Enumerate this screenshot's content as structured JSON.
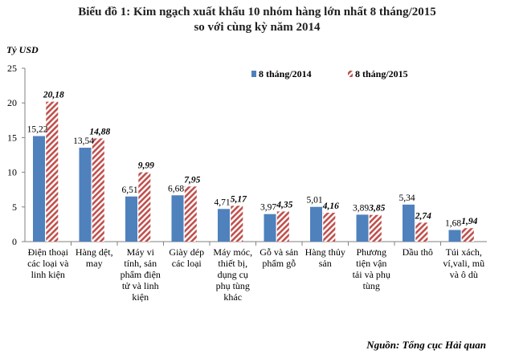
{
  "chart_data": {
    "type": "bar",
    "title_lines": [
      "Biểu đồ 1: Kim ngạch xuất khẩu 10 nhóm hàng lớn nhất 8 tháng/2015",
      "so với cùng kỳ năm 2014"
    ],
    "ylabel": "Tỷ USD",
    "ylim": [
      0,
      25
    ],
    "yticks": [
      "0",
      "5",
      "10",
      "15",
      "20",
      "25"
    ],
    "categories": [
      "Điện thoại các loại và linh kiện",
      "Hàng dệt, may",
      "Máy vi tính, sản phẩm điện tử và linh kiện",
      "Giày dép các loại",
      "Máy móc, thiết bị, dụng cụ phụ tùng khác",
      "Gỗ và sản phẩm gỗ",
      "Hàng thủy sản",
      "Phương tiện vận tải và phụ tùng",
      "Dầu thô",
      "Túi xách, ví,vali, mũ và ô dù"
    ],
    "category_lines": [
      [
        "Điện thoại",
        "các loại và",
        "linh kiện"
      ],
      [
        "Hàng dệt,",
        "may"
      ],
      [
        "Máy vi",
        "tính, sản",
        "phẩm điện",
        "tử và linh",
        "kiện"
      ],
      [
        "Giày dép",
        "các loại"
      ],
      [
        "Máy móc,",
        "thiết bị,",
        "dụng cụ",
        "phụ tùng",
        "khác"
      ],
      [
        "Gỗ và sản",
        "phẩm gỗ"
      ],
      [
        "Hàng thủy",
        "sản"
      ],
      [
        "Phương",
        "tiện vận",
        "tải và phụ",
        "tùng"
      ],
      [
        "Dầu thô"
      ],
      [
        "Túi xách,",
        "ví,vali, mũ",
        "và ô dù"
      ]
    ],
    "series": [
      {
        "name": "8 tháng/2014",
        "values": [
          15.22,
          13.54,
          6.51,
          6.68,
          4.71,
          3.97,
          5.01,
          3.89,
          5.34,
          1.68
        ],
        "labels": [
          "15,22",
          "13,54",
          "6,51",
          "6,68",
          "4,71",
          "3,97",
          "5,01",
          "3,89",
          "5,34",
          "1,68"
        ],
        "color": "#4f81bd"
      },
      {
        "name": "8 tháng/2015",
        "values": [
          20.18,
          14.88,
          9.99,
          7.95,
          5.17,
          4.35,
          4.16,
          3.85,
          2.74,
          1.94
        ],
        "labels": [
          "20,18",
          "14,88",
          "9,99",
          "7,95",
          "5,17",
          "4,35",
          "4,16",
          "3,85",
          "2,74",
          "1,94"
        ],
        "color": "#c0504d"
      }
    ],
    "legend_position": "top-right",
    "grid": false,
    "source": "Nguồn: Tổng cục Hải quan"
  }
}
